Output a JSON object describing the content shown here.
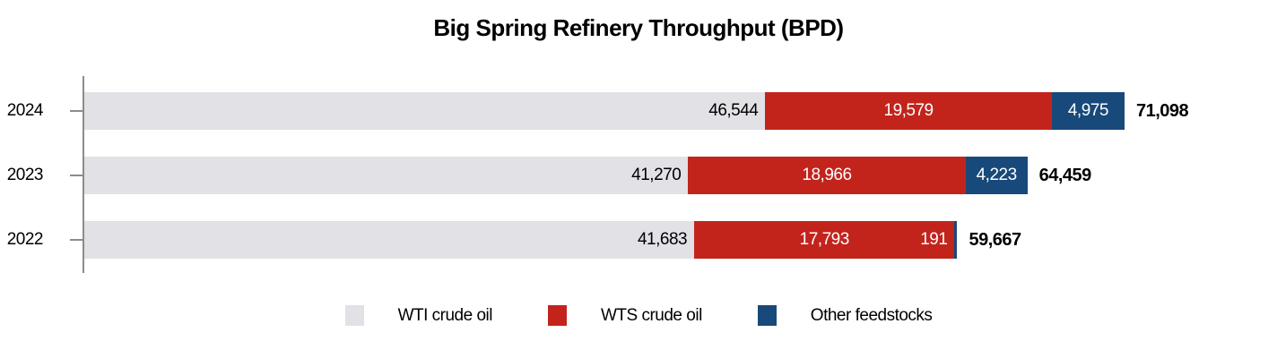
{
  "title": "Big Spring Refinery Throughput (BPD)",
  "colors": {
    "wti_gray": "#e1e1e6",
    "wts_red": "#c2241c",
    "other_blue": "#17497a",
    "axis_gray": "#8c8c8c",
    "label_dark": "#000000",
    "label_light": "#ffffff"
  },
  "chart_data": {
    "type": "bar",
    "orientation": "horizontal",
    "stacked": true,
    "title": "Big Spring Refinery Throughput (BPD)",
    "categories": [
      "2024",
      "2023",
      "2022"
    ],
    "series": [
      {
        "name": "WTI crude oil",
        "color": "#e1e1e6",
        "values": [
          46544,
          41270,
          41683
        ]
      },
      {
        "name": "WTS crude oil",
        "color": "#c2241c",
        "values": [
          19579,
          18966,
          17793
        ]
      },
      {
        "name": "Other feedstocks",
        "color": "#17497a",
        "values": [
          4975,
          4223,
          191
        ]
      }
    ],
    "totals": [
      71098,
      64459,
      59667
    ],
    "labels": {
      "segments": [
        [
          "46,544",
          "19,579",
          "4,975"
        ],
        [
          "41,270",
          "18,966",
          "4,223"
        ],
        [
          "41,683",
          "17,793",
          "191"
        ]
      ],
      "totals": [
        "71,098",
        "64,459",
        "59,667"
      ]
    },
    "xlim": [
      0,
      71098
    ],
    "grid": false,
    "legend_position": "bottom"
  },
  "legend": {
    "items": [
      {
        "label": "WTI crude oil"
      },
      {
        "label": "WTS crude oil"
      },
      {
        "label": "Other feedstocks"
      }
    ]
  }
}
